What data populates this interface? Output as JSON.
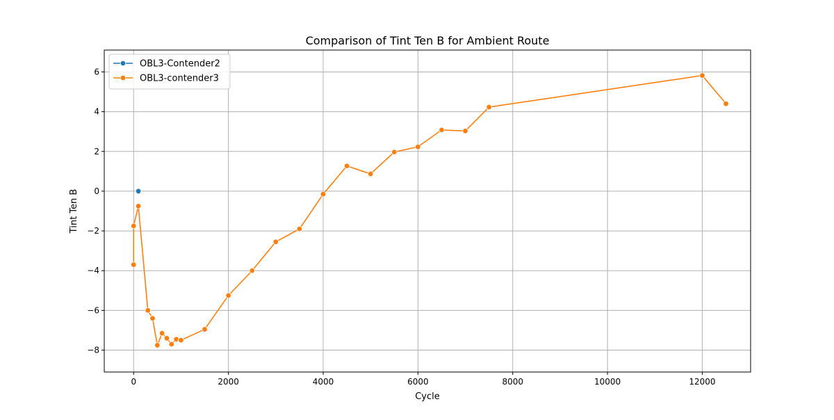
{
  "chart_data": {
    "type": "line",
    "title": "Comparison of Tint Ten B for Ambient Route",
    "xlabel": "Cycle",
    "ylabel": "Tint Ten B",
    "xlim": [
      -620,
      13020
    ],
    "ylim": [
      -9.1,
      7.1
    ],
    "xticks": [
      0,
      2000,
      4000,
      6000,
      8000,
      10000,
      12000
    ],
    "yticks": [
      -8,
      -6,
      -4,
      -2,
      0,
      2,
      4,
      6
    ],
    "grid": true,
    "legend_position": "top-left",
    "series": [
      {
        "name": "OBL3-Contender2",
        "color": "#1f77b4",
        "x": [
          100
        ],
        "y": [
          0.0
        ]
      },
      {
        "name": "OBL3-contender3",
        "color": "#ff7f0e",
        "x": [
          0,
          0,
          100,
          300,
          400,
          500,
          600,
          700,
          800,
          900,
          1000,
          1500,
          2000,
          2500,
          3000,
          3500,
          4000,
          4500,
          5000,
          5500,
          6000,
          6500,
          7000,
          7500,
          12000,
          12500
        ],
        "y": [
          -3.7,
          -1.75,
          -0.75,
          -6.0,
          -6.4,
          -7.75,
          -7.15,
          -7.4,
          -7.7,
          -7.45,
          -7.5,
          -6.95,
          -5.25,
          -4.0,
          -2.55,
          -1.9,
          -0.15,
          1.27,
          0.87,
          1.97,
          2.23,
          3.08,
          3.03,
          4.23,
          5.82,
          4.4
        ]
      }
    ]
  }
}
